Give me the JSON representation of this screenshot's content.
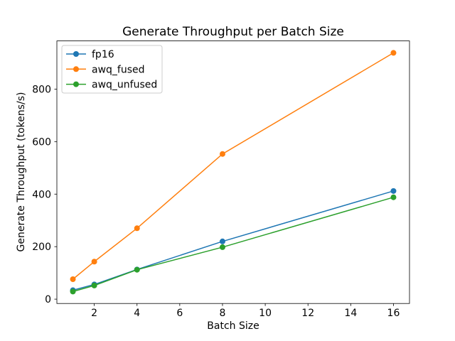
{
  "window": {
    "background": "#ffffff"
  },
  "chart_data": {
    "type": "line",
    "title": "Generate Throughput per Batch Size",
    "xlabel": "Batch Size",
    "ylabel": "Generate Throughput (tokens/s)",
    "x": [
      1,
      2,
      4,
      8,
      16
    ],
    "series": [
      {
        "name": "fp16",
        "color": "#1f77b4",
        "values": [
          34,
          56,
          113,
          220,
          412
        ]
      },
      {
        "name": "awq_fused",
        "color": "#ff7f0e",
        "values": [
          76,
          143,
          270,
          553,
          938
        ]
      },
      {
        "name": "awq_unfused",
        "color": "#2ca02c",
        "values": [
          29,
          52,
          112,
          198,
          388
        ]
      }
    ],
    "xticks": [
      2,
      4,
      6,
      8,
      10,
      12,
      14,
      16
    ],
    "yticks": [
      0,
      200,
      400,
      600,
      800
    ],
    "xlim": [
      0.25,
      16.75
    ],
    "ylim": [
      -16.5,
      983.5
    ],
    "grid": false,
    "marker": "circle",
    "line_width": 1.5,
    "marker_radius": 4,
    "axis_color": "#000000",
    "legend": {
      "position": "upper left",
      "border_color": "#cccccc",
      "background": "#ffffff"
    }
  }
}
